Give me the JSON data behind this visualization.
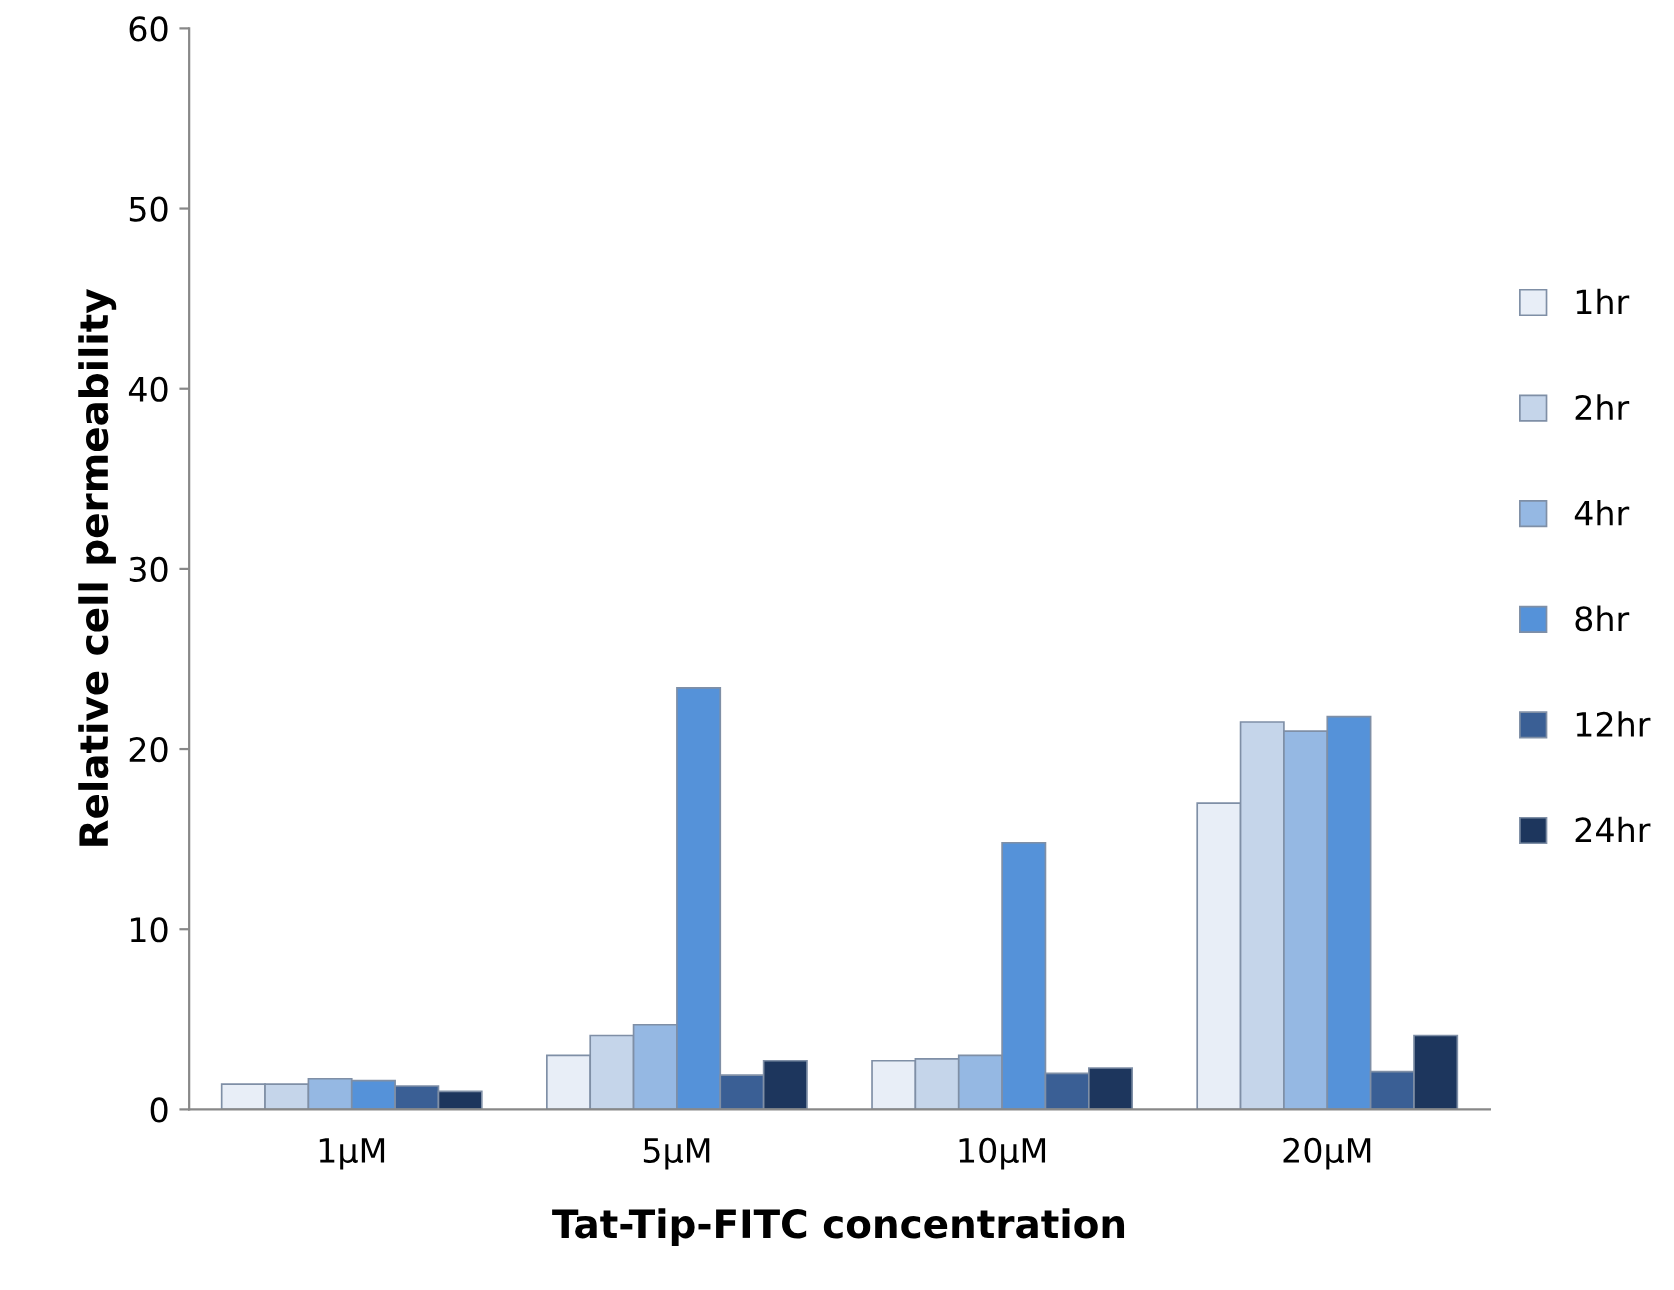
{
  "chart_data": {
    "type": "bar",
    "xlabel": "Tat-Tip-FITC concentration",
    "ylabel": "Relative cell permeability",
    "categories": [
      "1μM",
      "5μM",
      "10μM",
      "20μM"
    ],
    "series": [
      {
        "name": "1hr",
        "color": "#e8eef7",
        "values": [
          1.4,
          3.0,
          2.7,
          17.0
        ]
      },
      {
        "name": "2hr",
        "color": "#c5d5ea",
        "values": [
          1.4,
          4.1,
          2.8,
          21.5
        ]
      },
      {
        "name": "4hr",
        "color": "#95b8e3",
        "values": [
          1.7,
          4.7,
          3.0,
          21.0
        ]
      },
      {
        "name": "8hr",
        "color": "#5592d9",
        "values": [
          1.6,
          23.4,
          14.8,
          21.8
        ]
      },
      {
        "name": "12hr",
        "color": "#3a5f95",
        "values": [
          1.3,
          1.9,
          2.0,
          2.1
        ]
      },
      {
        "name": "24hr",
        "color": "#1d365d",
        "values": [
          1.0,
          2.7,
          2.3,
          4.1
        ]
      }
    ],
    "ylim": [
      0,
      60
    ],
    "yticks": [
      0,
      10,
      20,
      30,
      40,
      50,
      60
    ],
    "grid": false,
    "legend": "right"
  }
}
